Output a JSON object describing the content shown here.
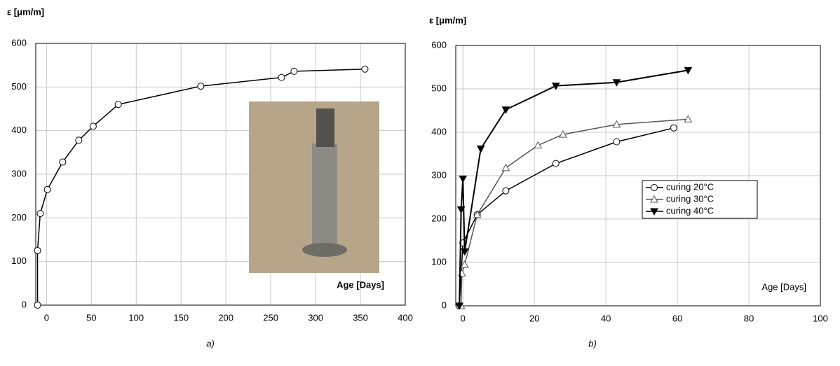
{
  "chart_data": [
    {
      "type": "line",
      "caption": "a)",
      "y_label": "ε  [μm/m]",
      "x_label": "Age [Days]",
      "xlim": [
        -12,
        400
      ],
      "xticks": [
        0,
        50,
        100,
        150,
        200,
        250,
        300,
        350,
        400
      ],
      "ylim": [
        0,
        600
      ],
      "yticks": [
        0,
        100,
        200,
        300,
        400,
        500,
        600
      ],
      "grid": true,
      "series": [
        {
          "color": "#000000",
          "marker": "circle",
          "x": [
            -10,
            -10,
            -7,
            1,
            18,
            36,
            52,
            80,
            172,
            262,
            276,
            355
          ],
          "values": [
            0,
            125,
            210,
            265,
            328,
            378,
            410,
            460,
            502,
            522,
            536,
            541
          ]
        }
      ]
    },
    {
      "type": "line",
      "caption": "b)",
      "y_label": "ε [μm/m]",
      "x_label": "Age [Days]",
      "xlim": [
        -2,
        100
      ],
      "xticks": [
        0,
        20,
        40,
        60,
        80,
        100
      ],
      "ylim": [
        0,
        600
      ],
      "yticks": [
        0,
        100,
        200,
        300,
        400,
        500,
        600
      ],
      "grid": true,
      "legend": "right",
      "series": [
        {
          "name": "curing 20°C",
          "color": "#000000",
          "marker": "circle",
          "x": [
            -1,
            0,
            4,
            12,
            26,
            43,
            59
          ],
          "values": [
            0,
            145,
            210,
            265,
            328,
            378,
            410
          ]
        },
        {
          "name": "curing 30°C",
          "color": "#555555",
          "marker": "triangle",
          "x": [
            -0.5,
            -0.3,
            0.5,
            4,
            12,
            21,
            28,
            43,
            63
          ],
          "values": [
            0,
            75,
            95,
            210,
            318,
            370,
            395,
            418,
            430
          ]
        },
        {
          "name": "curing 40°C",
          "color": "#000000",
          "marker": "triangle-down",
          "x": [
            -1,
            -0.5,
            0,
            0.5,
            5,
            12,
            26,
            43,
            63
          ],
          "values": [
            0,
            222,
            293,
            125,
            362,
            452,
            507,
            515,
            543
          ]
        }
      ]
    }
  ]
}
